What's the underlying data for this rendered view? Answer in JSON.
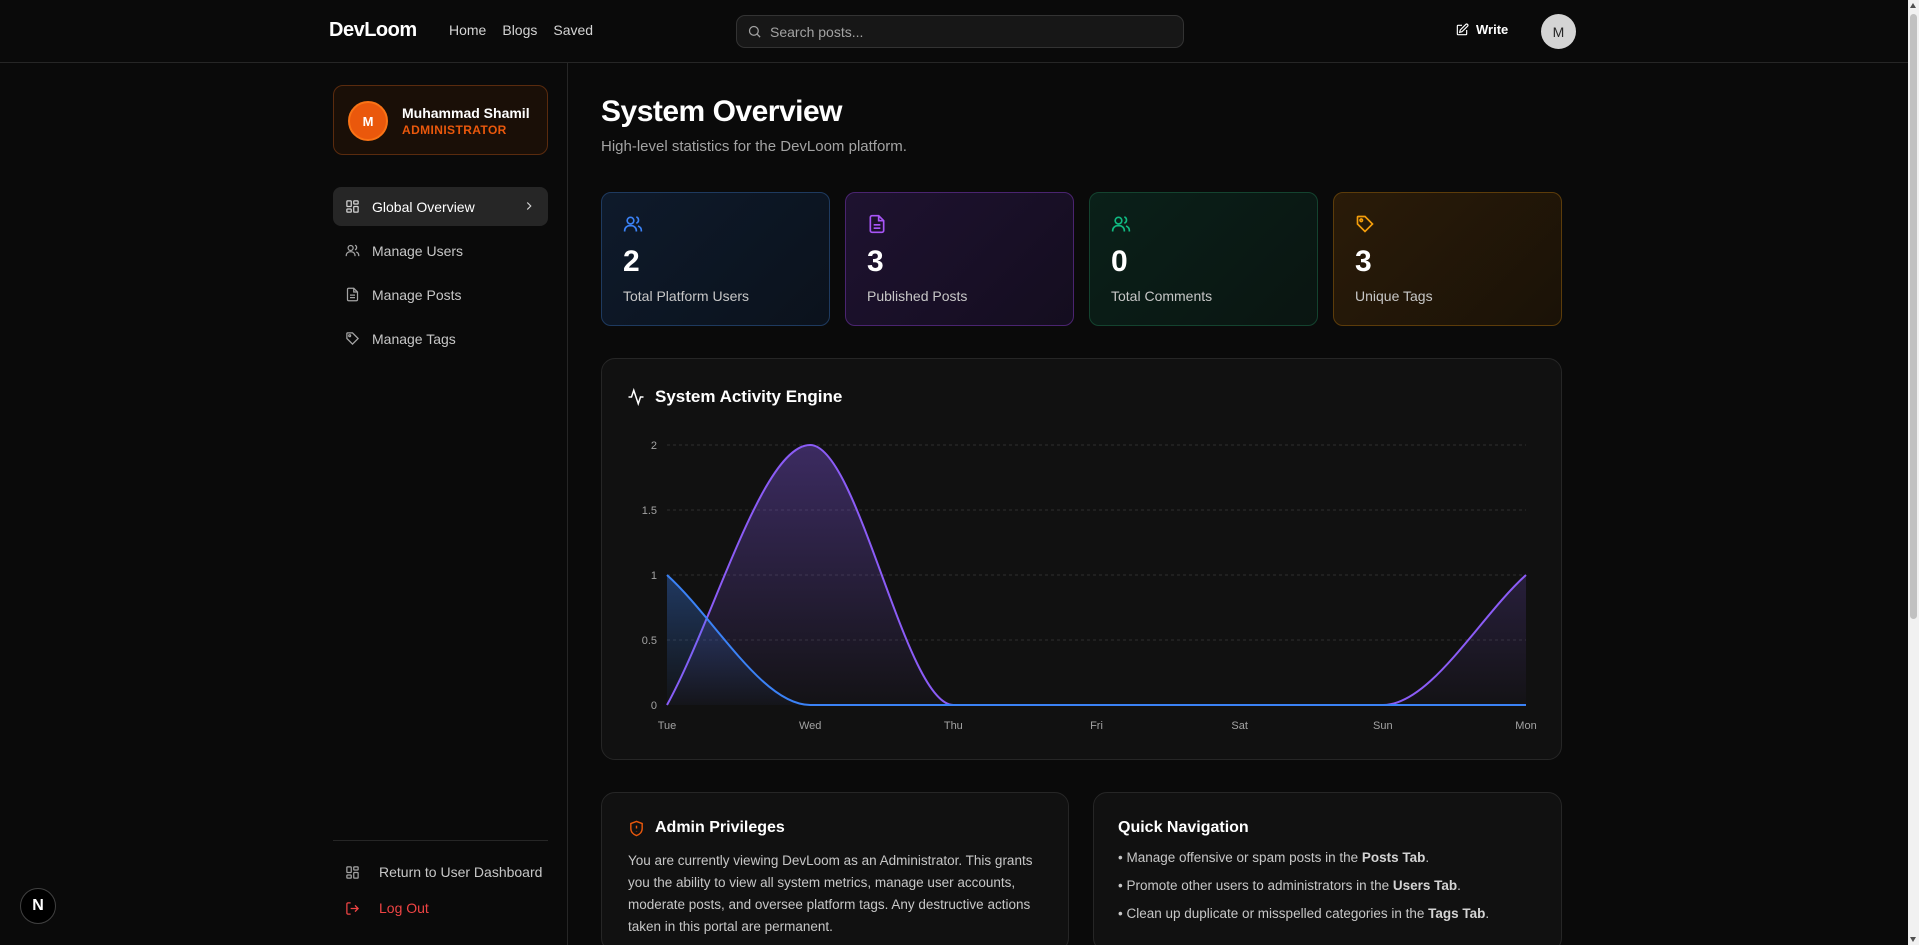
{
  "nav": {
    "brand": "DevLoom",
    "links": [
      "Home",
      "Blogs",
      "Saved"
    ],
    "search_placeholder": "Search posts...",
    "write_label": "Write",
    "avatar_initial": "M"
  },
  "sidebar": {
    "profile": {
      "initial": "M",
      "name": "Muhammad Shamil",
      "role": "ADMINISTRATOR"
    },
    "items": [
      {
        "label": "Global Overview",
        "icon": "grid-icon",
        "active": true
      },
      {
        "label": "Manage Users",
        "icon": "users-icon"
      },
      {
        "label": "Manage Posts",
        "icon": "file-icon"
      },
      {
        "label": "Manage Tags",
        "icon": "tag-icon"
      }
    ],
    "return_label": "Return to User Dashboard",
    "logout_label": "Log Out",
    "badge": "N"
  },
  "main": {
    "title": "System Overview",
    "subtitle": "High-level statistics for the DevLoom platform.",
    "stats": [
      {
        "value": "2",
        "label": "Total Platform Users",
        "color": "#3b82f6",
        "icon": "users-icon"
      },
      {
        "value": "3",
        "label": "Published Posts",
        "color": "#a855f7",
        "icon": "file-icon"
      },
      {
        "value": "0",
        "label": "Total Comments",
        "color": "#10b981",
        "icon": "users-icon"
      },
      {
        "value": "3",
        "label": "Unique Tags",
        "color": "#f59e0b",
        "icon": "tag-icon"
      }
    ],
    "chart_title": "System Activity Engine",
    "admin": {
      "title": "Admin Privileges",
      "text": "You are currently viewing DevLoom as an Administrator. This grants you the ability to view all system metrics, manage user accounts, moderate posts, and oversee platform tags. Any destructive actions taken in this portal are permanent."
    },
    "quick": {
      "title": "Quick Navigation",
      "items": [
        {
          "pre": "• Manage offensive or spam posts in the ",
          "bold": "Posts Tab",
          "post": "."
        },
        {
          "pre": "• Promote other users to administrators in the ",
          "bold": "Users Tab",
          "post": "."
        },
        {
          "pre": "• Clean up duplicate or misspelled categories in the ",
          "bold": "Tags Tab",
          "post": "."
        }
      ]
    }
  },
  "chart_data": {
    "type": "area",
    "title": "System Activity Engine",
    "categories": [
      "Tue",
      "Wed",
      "Thu",
      "Fri",
      "Sat",
      "Sun",
      "Mon"
    ],
    "y_ticks": [
      "0",
      "0.5",
      "1",
      "1.5",
      "2"
    ],
    "ylim": [
      0,
      2
    ],
    "grid": true,
    "series": [
      {
        "values": [
          0,
          2,
          0,
          0,
          0,
          0,
          1
        ],
        "color": "#8b5cf6"
      },
      {
        "values": [
          1,
          0,
          0,
          0,
          0,
          0,
          0
        ],
        "color": "#3b82f6"
      }
    ]
  }
}
